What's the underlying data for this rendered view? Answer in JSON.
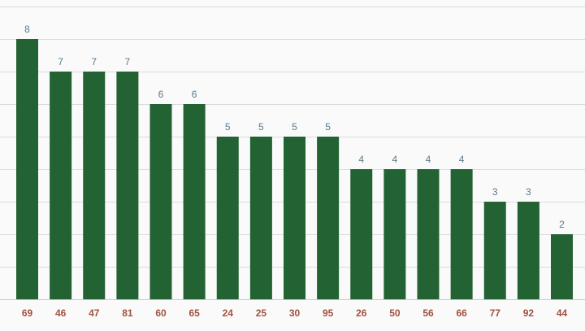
{
  "chart_data": {
    "type": "bar",
    "categories": [
      "69",
      "46",
      "47",
      "81",
      "60",
      "65",
      "24",
      "25",
      "30",
      "95",
      "26",
      "50",
      "56",
      "66",
      "77",
      "92",
      "44"
    ],
    "values": [
      8,
      7,
      7,
      7,
      6,
      6,
      5,
      5,
      5,
      5,
      4,
      4,
      4,
      4,
      3,
      3,
      2
    ],
    "title": "",
    "xlabel": "",
    "ylabel": "",
    "ylim": [
      0,
      9
    ],
    "grid": true,
    "data_labels": true,
    "colors": {
      "bar": "#236232",
      "value_label": "#5b7a8c",
      "tick_label": "#a0523d",
      "background": "#fafafa"
    }
  }
}
